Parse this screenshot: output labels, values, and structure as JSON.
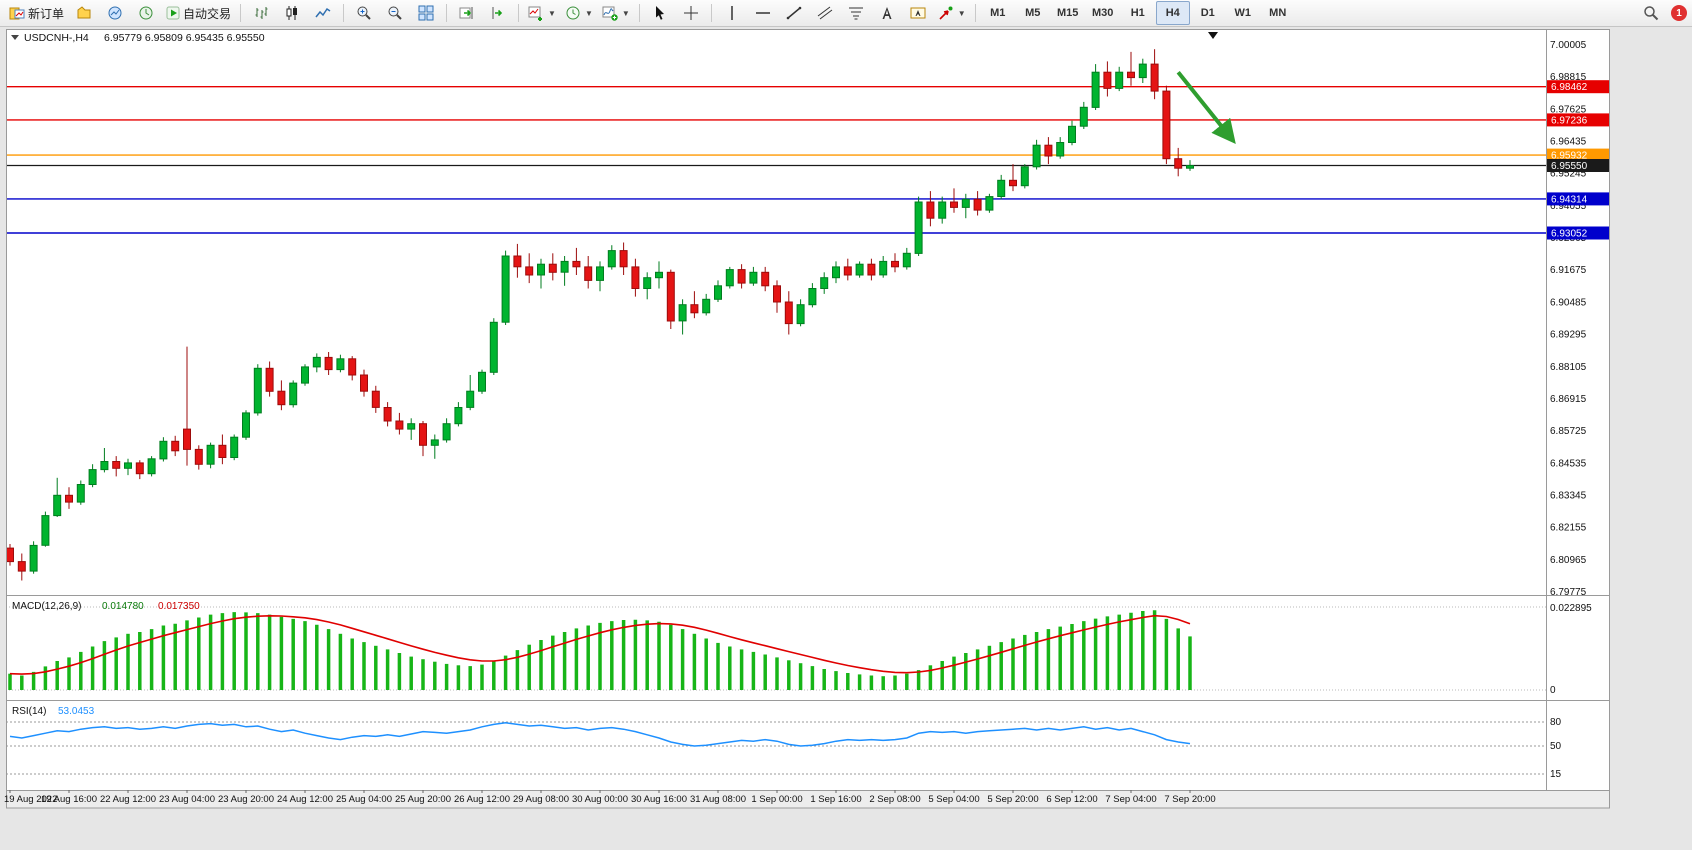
{
  "toolbar": {
    "new_order_label": "新订单",
    "autotrading_label": "自动交易",
    "timeframes": [
      "M1",
      "M5",
      "M15",
      "M30",
      "H1",
      "H4",
      "D1",
      "W1",
      "MN"
    ],
    "active_timeframe": "H4",
    "notification_count": "1"
  },
  "chart": {
    "symbol_label": "USDCNH-,H4",
    "quote_line": "6.95779 6.95809 6.95435 6.95550"
  },
  "chart_data": {
    "type": "candlestick",
    "symbol": "USDCNH",
    "timeframe": "H4",
    "price_axis": {
      "min": 6.79775,
      "max": 7.00005,
      "labels": [
        "7.00005",
        "6.98815",
        "6.97625",
        "6.96435",
        "6.95245",
        "6.94055",
        "6.92865",
        "6.91675",
        "6.90485",
        "6.89295",
        "6.88105",
        "6.86915",
        "6.85725",
        "6.84535",
        "6.83345",
        "6.82155",
        "6.80965",
        "6.79775"
      ]
    },
    "time_labels": [
      "19 Aug 2022",
      "19 Aug 16:00",
      "22 Aug 12:00",
      "23 Aug 04:00",
      "23 Aug 20:00",
      "24 Aug 12:00",
      "25 Aug 04:00",
      "25 Aug 20:00",
      "26 Aug 12:00",
      "29 Aug 08:00",
      "30 Aug 00:00",
      "30 Aug 16:00",
      "31 Aug 08:00",
      "1 Sep 00:00",
      "1 Sep 16:00",
      "2 Sep 08:00",
      "5 Sep 04:00",
      "5 Sep 20:00",
      "6 Sep 12:00",
      "7 Sep 04:00",
      "7 Sep 20:00"
    ],
    "hlines": [
      {
        "price": 6.98462,
        "label": "6.98462",
        "color": "#e60000"
      },
      {
        "price": 6.97236,
        "label": "6.97236",
        "color": "#e60000"
      },
      {
        "price": 6.95932,
        "label": "6.95932",
        "color": "#ff9900"
      },
      {
        "price": 6.94314,
        "label": "6.94314",
        "color": "#0000cc"
      },
      {
        "price": 6.93052,
        "label": "6.93052",
        "color": "#0000cc"
      }
    ],
    "current_price": {
      "price": 6.9555,
      "label": "6.95550",
      "color": "#1a1a1a"
    },
    "arrow_annotation": {
      "color": "#2f9e2f",
      "from_index": 99,
      "from_price": 6.99,
      "to_index": 103.5,
      "to_price": 6.9655
    },
    "candles": [
      [
        6.814,
        6.8155,
        6.8075,
        6.809
      ],
      [
        6.809,
        6.812,
        6.802,
        6.8055
      ],
      [
        6.8055,
        6.8165,
        6.8045,
        6.815
      ],
      [
        6.815,
        6.8275,
        6.8145,
        6.826
      ],
      [
        6.826,
        6.84,
        6.8255,
        6.8335
      ],
      [
        6.8335,
        6.8365,
        6.8285,
        6.831
      ],
      [
        6.831,
        6.839,
        6.83,
        6.8375
      ],
      [
        6.8375,
        6.845,
        6.8365,
        6.843
      ],
      [
        6.843,
        6.851,
        6.842,
        6.846
      ],
      [
        6.846,
        6.848,
        6.8405,
        6.8435
      ],
      [
        6.8435,
        6.847,
        6.841,
        6.8455
      ],
      [
        6.8455,
        6.8465,
        6.8395,
        6.8415
      ],
      [
        6.8415,
        6.848,
        6.8405,
        6.847
      ],
      [
        6.847,
        6.855,
        6.846,
        6.8535
      ],
      [
        6.8535,
        6.8555,
        6.848,
        6.85
      ],
      [
        6.858,
        6.8885,
        6.8445,
        6.8505
      ],
      [
        6.8505,
        6.852,
        6.843,
        6.845
      ],
      [
        6.845,
        6.853,
        6.8435,
        6.852
      ],
      [
        6.852,
        6.856,
        6.845,
        6.8475
      ],
      [
        6.8475,
        6.856,
        6.8465,
        6.855
      ],
      [
        6.855,
        6.865,
        6.854,
        6.864
      ],
      [
        6.864,
        6.882,
        6.863,
        6.8805
      ],
      [
        6.8805,
        6.883,
        6.87,
        6.872
      ],
      [
        6.872,
        6.876,
        6.865,
        6.867
      ],
      [
        6.867,
        6.876,
        6.866,
        6.875
      ],
      [
        6.875,
        6.882,
        6.874,
        6.881
      ],
      [
        6.881,
        6.886,
        6.879,
        6.8845
      ],
      [
        6.8845,
        6.8865,
        6.878,
        6.88
      ],
      [
        6.88,
        6.8855,
        6.879,
        6.884
      ],
      [
        6.884,
        6.885,
        6.876,
        6.878
      ],
      [
        6.878,
        6.88,
        6.87,
        6.872
      ],
      [
        6.872,
        6.874,
        6.864,
        6.866
      ],
      [
        6.866,
        6.868,
        6.859,
        6.861
      ],
      [
        6.861,
        6.864,
        6.856,
        6.858
      ],
      [
        6.858,
        6.862,
        6.854,
        6.86
      ],
      [
        6.86,
        6.861,
        6.848,
        6.852
      ],
      [
        6.852,
        6.856,
        6.847,
        6.854
      ],
      [
        6.854,
        6.862,
        6.853,
        6.86
      ],
      [
        6.86,
        6.868,
        6.859,
        6.866
      ],
      [
        6.866,
        6.878,
        6.865,
        6.872
      ],
      [
        6.872,
        6.88,
        6.871,
        6.879
      ],
      [
        6.879,
        6.899,
        6.878,
        6.8975
      ],
      [
        6.8975,
        6.924,
        6.8965,
        6.922
      ],
      [
        6.922,
        6.9265,
        6.914,
        6.918
      ],
      [
        6.918,
        6.923,
        6.912,
        6.915
      ],
      [
        6.915,
        6.921,
        6.91,
        6.919
      ],
      [
        6.919,
        6.923,
        6.913,
        6.916
      ],
      [
        6.916,
        6.922,
        6.911,
        6.92
      ],
      [
        6.92,
        6.925,
        6.915,
        6.918
      ],
      [
        6.918,
        6.922,
        6.91,
        6.913
      ],
      [
        6.913,
        6.92,
        6.909,
        6.918
      ],
      [
        6.918,
        6.926,
        6.917,
        6.924
      ],
      [
        6.924,
        6.927,
        6.915,
        6.918
      ],
      [
        6.918,
        6.921,
        6.907,
        6.91
      ],
      [
        6.91,
        6.916,
        6.906,
        6.914
      ],
      [
        6.914,
        6.92,
        6.91,
        6.916
      ],
      [
        6.916,
        6.917,
        6.895,
        6.898
      ],
      [
        6.898,
        6.906,
        6.893,
        6.904
      ],
      [
        6.904,
        6.909,
        6.899,
        6.901
      ],
      [
        6.901,
        6.908,
        6.9,
        6.906
      ],
      [
        6.906,
        6.913,
        6.905,
        6.911
      ],
      [
        6.911,
        6.918,
        6.91,
        6.917
      ],
      [
        6.917,
        6.919,
        6.91,
        6.912
      ],
      [
        6.912,
        6.918,
        6.911,
        6.916
      ],
      [
        6.916,
        6.918,
        6.909,
        6.911
      ],
      [
        6.911,
        6.913,
        6.901,
        6.905
      ],
      [
        6.905,
        6.909,
        6.893,
        6.897
      ],
      [
        6.897,
        6.906,
        6.896,
        6.904
      ],
      [
        6.904,
        6.912,
        6.903,
        6.91
      ],
      [
        6.91,
        6.916,
        6.908,
        6.914
      ],
      [
        6.914,
        6.92,
        6.912,
        6.918
      ],
      [
        6.918,
        6.921,
        6.913,
        6.915
      ],
      [
        6.915,
        6.92,
        6.914,
        6.919
      ],
      [
        6.919,
        6.921,
        6.913,
        6.915
      ],
      [
        6.915,
        6.922,
        6.914,
        6.92
      ],
      [
        6.92,
        6.923,
        6.916,
        6.918
      ],
      [
        6.918,
        6.925,
        6.917,
        6.923
      ],
      [
        6.923,
        6.944,
        6.922,
        6.942
      ],
      [
        6.942,
        6.946,
        6.933,
        6.936
      ],
      [
        6.936,
        6.944,
        6.934,
        6.942
      ],
      [
        6.942,
        6.947,
        6.938,
        6.94
      ],
      [
        6.94,
        6.945,
        6.936,
        6.943
      ],
      [
        6.943,
        6.946,
        6.937,
        6.939
      ],
      [
        6.939,
        6.945,
        6.938,
        6.944
      ],
      [
        6.944,
        6.952,
        6.943,
        6.95
      ],
      [
        6.95,
        6.956,
        6.946,
        6.948
      ],
      [
        6.948,
        6.956,
        6.947,
        6.955
      ],
      [
        6.955,
        6.965,
        6.954,
        6.963
      ],
      [
        6.963,
        6.966,
        6.956,
        6.959
      ],
      [
        6.959,
        6.966,
        6.958,
        6.964
      ],
      [
        6.964,
        6.972,
        6.963,
        6.97
      ],
      [
        6.97,
        6.979,
        6.969,
        6.977
      ],
      [
        6.977,
        6.993,
        6.976,
        6.99
      ],
      [
        6.99,
        6.994,
        6.981,
        6.984
      ],
      [
        6.984,
        6.992,
        6.983,
        6.99
      ],
      [
        6.99,
        6.9975,
        6.985,
        6.988
      ],
      [
        6.988,
        6.995,
        6.986,
        6.993
      ],
      [
        6.993,
        6.9985,
        6.98,
        6.983
      ],
      [
        6.983,
        6.985,
        6.956,
        6.958
      ],
      [
        6.958,
        6.962,
        6.9515,
        6.9545
      ],
      [
        6.9545,
        6.9575,
        6.9535,
        6.9555
      ]
    ],
    "up_color": "#00b42f",
    "down_color": "#e41414",
    "macd": {
      "label": "MACD(12,26,9)",
      "main_value": "0.014780",
      "signal_value": "0.017350",
      "axis_max": 0.022895,
      "axis_max_label": "0.022895",
      "axis_zero_label": "0",
      "hist_color": "#17b517",
      "signal_color": "#e00000",
      "hist": [
        0.0045,
        0.004,
        0.005,
        0.0065,
        0.008,
        0.009,
        0.0105,
        0.012,
        0.0135,
        0.0145,
        0.0155,
        0.016,
        0.0168,
        0.0178,
        0.0183,
        0.0192,
        0.02,
        0.0208,
        0.0212,
        0.0215,
        0.0214,
        0.0212,
        0.0208,
        0.0202,
        0.0196,
        0.019,
        0.018,
        0.0168,
        0.0155,
        0.0142,
        0.0132,
        0.0122,
        0.0112,
        0.0102,
        0.0092,
        0.0085,
        0.0078,
        0.0072,
        0.0068,
        0.0066,
        0.007,
        0.008,
        0.0095,
        0.011,
        0.0125,
        0.0138,
        0.015,
        0.016,
        0.017,
        0.0178,
        0.0185,
        0.019,
        0.0193,
        0.0194,
        0.0192,
        0.0188,
        0.018,
        0.0168,
        0.0155,
        0.0142,
        0.013,
        0.012,
        0.0112,
        0.0105,
        0.0098,
        0.009,
        0.0082,
        0.0074,
        0.0066,
        0.0058,
        0.0052,
        0.0047,
        0.0043,
        0.004,
        0.0038,
        0.004,
        0.0045,
        0.0055,
        0.0068,
        0.008,
        0.0092,
        0.0102,
        0.0112,
        0.0122,
        0.0132,
        0.0142,
        0.0152,
        0.016,
        0.0168,
        0.0175,
        0.0182,
        0.019,
        0.0197,
        0.0203,
        0.0208,
        0.0213,
        0.0218,
        0.022,
        0.0196,
        0.017,
        0.01478
      ]
    },
    "rsi": {
      "label": "RSI(14)",
      "value": "53.0453",
      "line_color": "#1e90ff",
      "levels": [
        80,
        50,
        15
      ],
      "values": [
        62,
        60,
        63,
        66,
        69,
        68,
        71,
        73,
        74,
        72,
        73,
        71,
        72,
        74,
        72,
        75,
        77,
        78,
        76,
        77,
        74,
        75,
        71,
        68,
        70,
        66,
        63,
        60,
        58,
        61,
        63,
        62,
        64,
        62,
        65,
        68,
        67,
        66,
        68,
        70,
        74,
        77,
        79,
        77,
        75,
        76,
        74,
        72,
        73,
        70,
        72,
        73,
        71,
        68,
        64,
        60,
        55,
        52,
        50,
        51,
        53,
        55,
        57,
        56,
        58,
        56,
        52,
        50,
        51,
        53,
        56,
        58,
        57,
        58,
        57,
        58,
        60,
        66,
        68,
        67,
        68,
        66,
        68,
        69,
        70,
        71,
        72,
        70,
        72,
        70,
        72,
        74,
        71,
        73,
        70,
        72,
        68,
        64,
        58,
        55,
        53.05
      ]
    }
  }
}
